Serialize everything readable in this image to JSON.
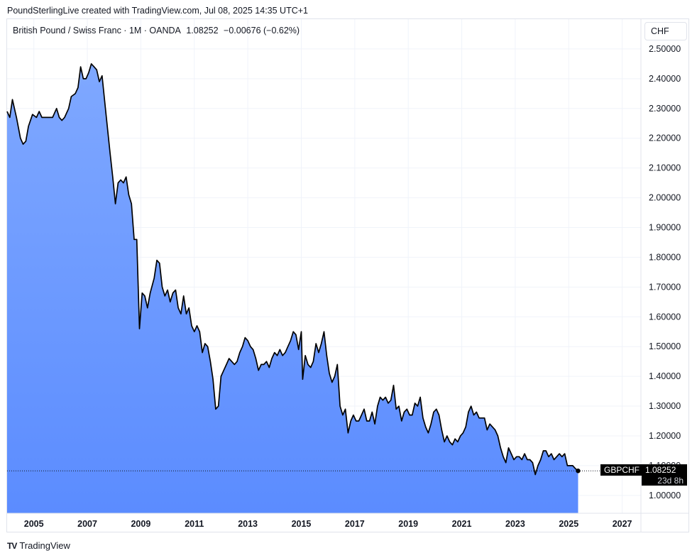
{
  "attribution": "PoundSterlingLive created with TradingView.com, Jul 08, 2025 14:35 UTC+1",
  "legend": {
    "symbol_desc": "British Pound / Swiss Franc · 1M · OANDA",
    "last": "1.08252",
    "change": "−0.00676 (−0.62%)"
  },
  "currency_button": "CHF",
  "price_tag": {
    "symbol": "GBPCHF",
    "price": "1.08252",
    "countdown": "23d 8h"
  },
  "footer": {
    "logo_mark": "TV",
    "logo_text": "TradingView"
  },
  "colors": {
    "line": "#000000",
    "area_top": "#7fa8ff",
    "area_bottom": "#5b8cff",
    "grid": "#f0f3fa"
  },
  "chart_data": {
    "type": "area",
    "title": "British Pound / Swiss Franc · 1M · OANDA",
    "series": [
      {
        "name": "GBPCHF",
        "points": [
          [
            2004.0,
            2.29
          ],
          [
            2004.1,
            2.27
          ],
          [
            2004.2,
            2.33
          ],
          [
            2004.35,
            2.27
          ],
          [
            2004.5,
            2.2
          ],
          [
            2004.6,
            2.18
          ],
          [
            2004.7,
            2.19
          ],
          [
            2004.8,
            2.24
          ],
          [
            2004.95,
            2.28
          ],
          [
            2005.1,
            2.27
          ],
          [
            2005.2,
            2.29
          ],
          [
            2005.3,
            2.27
          ],
          [
            2005.45,
            2.27
          ],
          [
            2005.55,
            2.27
          ],
          [
            2005.7,
            2.27
          ],
          [
            2005.85,
            2.3
          ],
          [
            2005.95,
            2.27
          ],
          [
            2006.05,
            2.26
          ],
          [
            2006.15,
            2.27
          ],
          [
            2006.3,
            2.3
          ],
          [
            2006.4,
            2.34
          ],
          [
            2006.55,
            2.35
          ],
          [
            2006.65,
            2.37
          ],
          [
            2006.75,
            2.44
          ],
          [
            2006.85,
            2.4
          ],
          [
            2006.95,
            2.4
          ],
          [
            2007.05,
            2.42
          ],
          [
            2007.15,
            2.45
          ],
          [
            2007.25,
            2.44
          ],
          [
            2007.35,
            2.43
          ],
          [
            2007.45,
            2.39
          ],
          [
            2007.55,
            2.41
          ],
          [
            2007.7,
            2.28
          ],
          [
            2007.85,
            2.15
          ],
          [
            2007.95,
            2.07
          ],
          [
            2008.05,
            1.98
          ],
          [
            2008.15,
            2.05
          ],
          [
            2008.25,
            2.06
          ],
          [
            2008.35,
            2.05
          ],
          [
            2008.45,
            2.07
          ],
          [
            2008.55,
            2.01
          ],
          [
            2008.65,
            1.98
          ],
          [
            2008.75,
            1.86
          ],
          [
            2008.85,
            1.86
          ],
          [
            2008.95,
            1.56
          ],
          [
            2009.05,
            1.68
          ],
          [
            2009.15,
            1.67
          ],
          [
            2009.25,
            1.63
          ],
          [
            2009.35,
            1.68
          ],
          [
            2009.5,
            1.73
          ],
          [
            2009.6,
            1.79
          ],
          [
            2009.7,
            1.78
          ],
          [
            2009.8,
            1.7
          ],
          [
            2009.9,
            1.67
          ],
          [
            2010.0,
            1.69
          ],
          [
            2010.1,
            1.65
          ],
          [
            2010.2,
            1.68
          ],
          [
            2010.3,
            1.69
          ],
          [
            2010.4,
            1.63
          ],
          [
            2010.5,
            1.61
          ],
          [
            2010.6,
            1.67
          ],
          [
            2010.7,
            1.61
          ],
          [
            2010.8,
            1.63
          ],
          [
            2010.9,
            1.57
          ],
          [
            2011.0,
            1.55
          ],
          [
            2011.1,
            1.57
          ],
          [
            2011.2,
            1.55
          ],
          [
            2011.3,
            1.48
          ],
          [
            2011.4,
            1.51
          ],
          [
            2011.5,
            1.5
          ],
          [
            2011.6,
            1.45
          ],
          [
            2011.7,
            1.39
          ],
          [
            2011.8,
            1.29
          ],
          [
            2011.9,
            1.3
          ],
          [
            2012.0,
            1.4
          ],
          [
            2012.1,
            1.42
          ],
          [
            2012.2,
            1.44
          ],
          [
            2012.3,
            1.46
          ],
          [
            2012.5,
            1.44
          ],
          [
            2012.6,
            1.45
          ],
          [
            2012.7,
            1.48
          ],
          [
            2012.8,
            1.5
          ],
          [
            2012.9,
            1.53
          ],
          [
            2013.0,
            1.52
          ],
          [
            2013.1,
            1.5
          ],
          [
            2013.2,
            1.49
          ],
          [
            2013.3,
            1.46
          ],
          [
            2013.4,
            1.42
          ],
          [
            2013.5,
            1.44
          ],
          [
            2013.6,
            1.44
          ],
          [
            2013.7,
            1.45
          ],
          [
            2013.8,
            1.43
          ],
          [
            2013.9,
            1.46
          ],
          [
            2014.0,
            1.48
          ],
          [
            2014.1,
            1.47
          ],
          [
            2014.2,
            1.49
          ],
          [
            2014.3,
            1.47
          ],
          [
            2014.4,
            1.48
          ],
          [
            2014.5,
            1.5
          ],
          [
            2014.6,
            1.52
          ],
          [
            2014.7,
            1.55
          ],
          [
            2014.8,
            1.54
          ],
          [
            2014.9,
            1.49
          ],
          [
            2015.0,
            1.55
          ],
          [
            2015.05,
            1.39
          ],
          [
            2015.15,
            1.47
          ],
          [
            2015.25,
            1.44
          ],
          [
            2015.35,
            1.43
          ],
          [
            2015.45,
            1.45
          ],
          [
            2015.55,
            1.51
          ],
          [
            2015.65,
            1.48
          ],
          [
            2015.75,
            1.51
          ],
          [
            2015.85,
            1.55
          ],
          [
            2015.95,
            1.47
          ],
          [
            2016.05,
            1.41
          ],
          [
            2016.15,
            1.38
          ],
          [
            2016.25,
            1.4
          ],
          [
            2016.35,
            1.44
          ],
          [
            2016.45,
            1.3
          ],
          [
            2016.55,
            1.27
          ],
          [
            2016.65,
            1.29
          ],
          [
            2016.75,
            1.21
          ],
          [
            2016.85,
            1.25
          ],
          [
            2016.95,
            1.27
          ],
          [
            2017.05,
            1.25
          ],
          [
            2017.15,
            1.25
          ],
          [
            2017.25,
            1.27
          ],
          [
            2017.35,
            1.29
          ],
          [
            2017.45,
            1.25
          ],
          [
            2017.55,
            1.25
          ],
          [
            2017.65,
            1.28
          ],
          [
            2017.75,
            1.24
          ],
          [
            2017.85,
            1.3
          ],
          [
            2017.95,
            1.33
          ],
          [
            2018.05,
            1.32
          ],
          [
            2018.15,
            1.33
          ],
          [
            2018.25,
            1.31
          ],
          [
            2018.35,
            1.32
          ],
          [
            2018.45,
            1.37
          ],
          [
            2018.55,
            1.29
          ],
          [
            2018.65,
            1.3
          ],
          [
            2018.75,
            1.25
          ],
          [
            2018.85,
            1.28
          ],
          [
            2018.95,
            1.29
          ],
          [
            2019.05,
            1.27
          ],
          [
            2019.15,
            1.27
          ],
          [
            2019.25,
            1.31
          ],
          [
            2019.35,
            1.3
          ],
          [
            2019.45,
            1.33
          ],
          [
            2019.55,
            1.26
          ],
          [
            2019.65,
            1.23
          ],
          [
            2019.75,
            1.21
          ],
          [
            2019.85,
            1.24
          ],
          [
            2019.95,
            1.28
          ],
          [
            2020.05,
            1.29
          ],
          [
            2020.15,
            1.27
          ],
          [
            2020.25,
            1.22
          ],
          [
            2020.35,
            1.18
          ],
          [
            2020.45,
            1.2
          ],
          [
            2020.55,
            1.18
          ],
          [
            2020.65,
            1.17
          ],
          [
            2020.75,
            1.19
          ],
          [
            2020.85,
            1.18
          ],
          [
            2020.95,
            1.2
          ],
          [
            2021.05,
            1.21
          ],
          [
            2021.15,
            1.23
          ],
          [
            2021.25,
            1.28
          ],
          [
            2021.35,
            1.3
          ],
          [
            2021.45,
            1.27
          ],
          [
            2021.55,
            1.28
          ],
          [
            2021.65,
            1.26
          ],
          [
            2021.75,
            1.26
          ],
          [
            2021.85,
            1.26
          ],
          [
            2021.95,
            1.22
          ],
          [
            2022.05,
            1.24
          ],
          [
            2022.15,
            1.23
          ],
          [
            2022.25,
            1.22
          ],
          [
            2022.35,
            1.2
          ],
          [
            2022.45,
            1.16
          ],
          [
            2022.55,
            1.13
          ],
          [
            2022.65,
            1.11
          ],
          [
            2022.75,
            1.16
          ],
          [
            2022.85,
            1.14
          ],
          [
            2022.95,
            1.12
          ],
          [
            2023.05,
            1.13
          ],
          [
            2023.15,
            1.13
          ],
          [
            2023.25,
            1.12
          ],
          [
            2023.35,
            1.14
          ],
          [
            2023.45,
            1.12
          ],
          [
            2023.55,
            1.12
          ],
          [
            2023.65,
            1.11
          ],
          [
            2023.75,
            1.07
          ],
          [
            2023.85,
            1.1
          ],
          [
            2023.95,
            1.12
          ],
          [
            2024.05,
            1.15
          ],
          [
            2024.15,
            1.15
          ],
          [
            2024.25,
            1.13
          ],
          [
            2024.35,
            1.14
          ],
          [
            2024.45,
            1.12
          ],
          [
            2024.55,
            1.13
          ],
          [
            2024.65,
            1.14
          ],
          [
            2024.75,
            1.13
          ],
          [
            2024.85,
            1.14
          ],
          [
            2024.95,
            1.1
          ],
          [
            2025.05,
            1.1
          ],
          [
            2025.15,
            1.1
          ],
          [
            2025.25,
            1.09
          ],
          [
            2025.35,
            1.08252
          ]
        ]
      }
    ],
    "x_tick_labels": [
      "2005",
      "2007",
      "2009",
      "2011",
      "2013",
      "2015",
      "2017",
      "2019",
      "2021",
      "2023",
      "2025",
      "2027"
    ],
    "x_tick_values": [
      2005,
      2007,
      2009,
      2011,
      2013,
      2015,
      2017,
      2019,
      2021,
      2023,
      2025,
      2027
    ],
    "y_tick_labels": [
      "1.00000",
      "1.10000",
      "1.20000",
      "1.30000",
      "1.40000",
      "1.50000",
      "1.60000",
      "1.70000",
      "1.80000",
      "1.90000",
      "2.00000",
      "2.10000",
      "2.20000",
      "2.30000",
      "2.40000",
      "2.50000"
    ],
    "y_tick_values": [
      1.0,
      1.1,
      1.2,
      1.3,
      1.4,
      1.5,
      1.6,
      1.7,
      1.8,
      1.9,
      2.0,
      2.1,
      2.2,
      2.3,
      2.4,
      2.5
    ],
    "xlim": [
      2004.0,
      2027.7
    ],
    "ylim": [
      0.94,
      2.6
    ],
    "last_value": 1.08252,
    "grid": true,
    "price_axis": "right"
  }
}
